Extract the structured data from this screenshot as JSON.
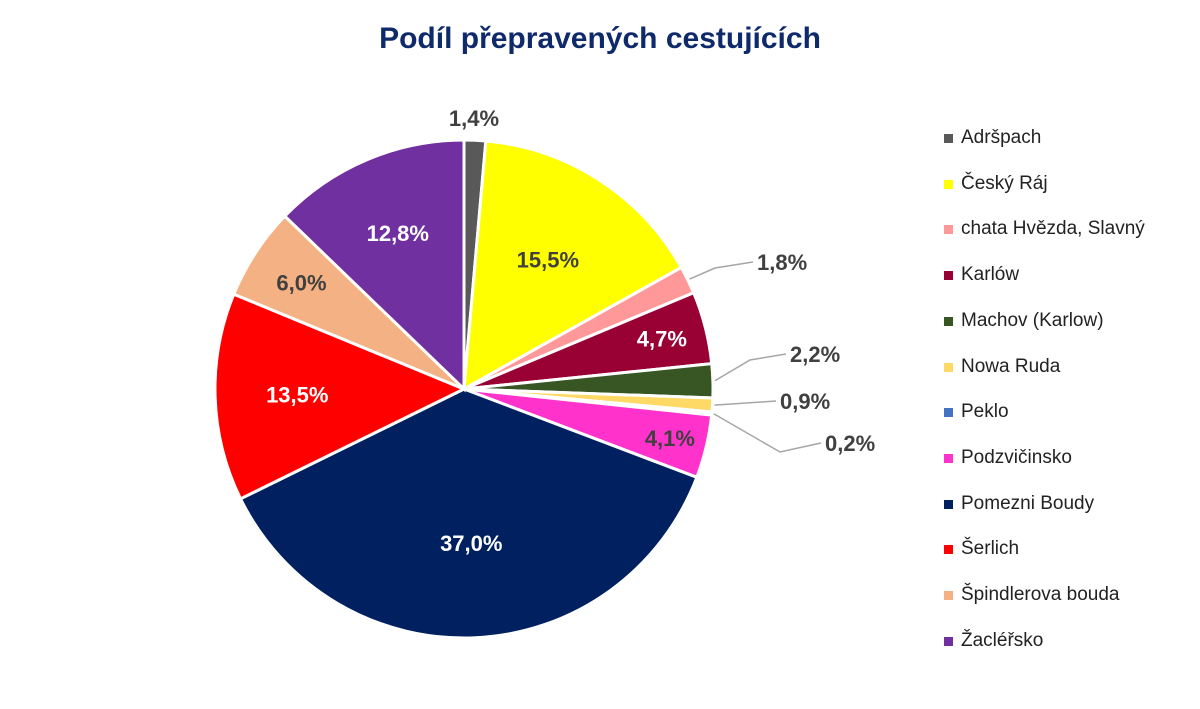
{
  "chart_data": {
    "type": "pie",
    "title": "Podíl přepravených cestujících",
    "legend_position": "right",
    "slices": [
      {
        "label": "Adršpach",
        "value": 1.4,
        "value_label": "1,4%",
        "color": "#595959",
        "label_color": "#404040"
      },
      {
        "label": "Český Ráj",
        "value": 15.5,
        "value_label": "15,5%",
        "color": "#ffff00",
        "label_color": "#404040"
      },
      {
        "label": "chata Hvězda, Slavný",
        "value": 1.8,
        "value_label": "1,8%",
        "color": "#ff9999",
        "label_color": "#404040"
      },
      {
        "label": "Karlów",
        "value": 4.7,
        "value_label": "4,7%",
        "color": "#990033",
        "label_color": "#ffffff"
      },
      {
        "label": "Machov (Karlow)",
        "value": 2.2,
        "value_label": "2,2%",
        "color": "#375623",
        "label_color": "#404040"
      },
      {
        "label": "Nowa Ruda",
        "value": 0.9,
        "value_label": "0,9%",
        "color": "#ffd966",
        "label_color": "#404040"
      },
      {
        "label": "Peklo",
        "value": 0.2,
        "value_label": "0,2%",
        "color": "#4472c4",
        "label_color": "#404040"
      },
      {
        "label": "Podzvičinsko",
        "value": 4.1,
        "value_label": "4,1%",
        "color": "#ff33cc",
        "label_color": "#404040"
      },
      {
        "label": "Pomezni Boudy",
        "value": 37.0,
        "value_label": "37,0%",
        "color": "#002060",
        "label_color": "#ffffff"
      },
      {
        "label": "Šerlich",
        "value": 13.5,
        "value_label": "13,5%",
        "color": "#ff0000",
        "label_color": "#ffffff"
      },
      {
        "label": "Špindlerova bouda",
        "value": 6.0,
        "value_label": "6,0%",
        "color": "#f4b183",
        "label_color": "#404040"
      },
      {
        "label": "Žacléřsko",
        "value": 12.8,
        "value_label": "12,8%",
        "color": "#7030a0",
        "label_color": "#ffffff"
      }
    ]
  }
}
